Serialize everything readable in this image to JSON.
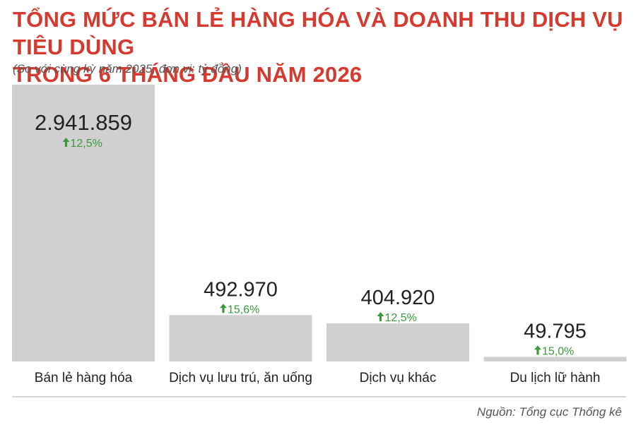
{
  "title_line1": "TỔNG MỨC BÁN LẺ HÀNG HÓA VÀ DOANH THU DỊCH VỤ TIÊU DÙNG",
  "title_line2": "TRONG 6 THÁNG ĐẦU NĂM 2026",
  "subtitle": "(So với cùng kỳ năm 2025, đơn vị: tỷ đồng)",
  "source": "Nguồn: Tổng cục Thống kê",
  "colors": {
    "title": "#d63a2f",
    "bar": "#d1cfd1",
    "growth": "#3a9a3a",
    "value": "#222222"
  },
  "chart_data": {
    "type": "bar",
    "title": "TỔNG MỨC BÁN LẺ HÀNG HÓA VÀ DOANH THU DỊCH VỤ TIÊU DÙNG TRONG 6 THÁNG ĐẦU NĂM 2026",
    "subtitle": "(So với cùng kỳ năm 2025, đơn vị: tỷ đồng)",
    "categories": [
      "Bán lẻ hàng hóa",
      "Dịch vụ lưu trú, ăn uống",
      "Dịch vụ khác",
      "Du lịch lữ hành"
    ],
    "values": [
      2941859,
      492970,
      404920,
      49795
    ],
    "value_labels": [
      "2.941.859",
      "492.970",
      "404.920",
      "49.795"
    ],
    "growth_labels": [
      "12,5%",
      "15,6%",
      "12,5%",
      "15,0%"
    ],
    "growth_icon": "arrow-up-icon",
    "xlabel": "",
    "ylabel": "",
    "ylim": [
      0,
      2941859
    ],
    "grid": false,
    "legend": "none"
  }
}
